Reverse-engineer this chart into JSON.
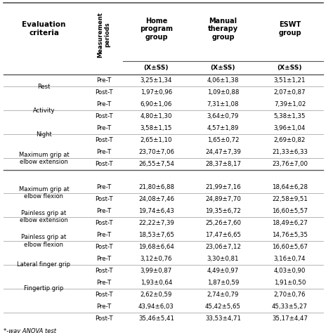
{
  "col_headers_line1": [
    "Evaluation",
    "",
    "Home",
    "Manual",
    "ESWT"
  ],
  "col_headers_line2": [
    "criteria",
    "",
    "program",
    "therapy",
    "group"
  ],
  "col_headers_line3": [
    "",
    "",
    "group",
    "group",
    ""
  ],
  "measurement_label": "Measurement\nperiods",
  "subheader": [
    "",
    "",
    "(X±SS)",
    "(X±SS)",
    "(X±SS)"
  ],
  "rows": [
    [
      "Rest",
      "Pre-T",
      "3,25±1,34",
      "4,06±1,38",
      "3,51±1,21"
    ],
    [
      "",
      "Post-T",
      "1,97±0,96",
      "1,09±0,88",
      "2,07±0,87"
    ],
    [
      "Activity",
      "Pre-T",
      "6,90±1,06",
      "7,31±1,08",
      "7,39±1,02"
    ],
    [
      "",
      "Post-T",
      "4,80±1,30",
      "3,64±0,79",
      "5,38±1,35"
    ],
    [
      "Night",
      "Pre-T",
      "3,58±1,15",
      "4,57±1,89",
      "3,96±1,04"
    ],
    [
      "",
      "Post-T",
      "2,65±1,10",
      "1,65±0,72",
      "2,69±0,82"
    ],
    [
      "Maximum grip at\nelbow extension",
      "Pre-T",
      "23,70±7,06",
      "24,47±7,39",
      "21,33±6,33"
    ],
    [
      "",
      "Post-T",
      "26,55±7,54",
      "28,37±8,17",
      "23,76±7,00"
    ],
    [
      "",
      "",
      "",
      "",
      ""
    ],
    [
      "Maximum grip at\nelbow flexion",
      "Pre-T",
      "21,80±6,88",
      "21,99±7,16",
      "18,64±6,28"
    ],
    [
      "",
      "Post-T",
      "24,08±7,46",
      "24,89±7,70",
      "22,58±9,51"
    ],
    [
      "Painless grip at\nelbow extension",
      "Pre-T",
      "19,74±6,43",
      "19,35±6,72",
      "16,60±5,57"
    ],
    [
      "",
      "Post-T",
      "22,22±7,39",
      "25,26±7,60",
      "18,49±6,27"
    ],
    [
      "Painless grip at\nelbow flexion",
      "Pre-T",
      "18,53±7,65",
      "17,47±6,65",
      "14,76±5,35"
    ],
    [
      "",
      "Post-T",
      "19,68±6,64",
      "23,06±7,12",
      "16,60±5,67"
    ],
    [
      "Lateral finger grip",
      "Pre-T",
      "3,12±0,76",
      "3,30±0,81",
      "3,16±0,74"
    ],
    [
      "",
      "Post-T",
      "3,99±0,87",
      "4,49±0,97",
      "4,03±0,90"
    ],
    [
      "Fingertip grip",
      "Pre-T",
      "1,93±0,64",
      "1,87±0,59",
      "1,91±0,50"
    ],
    [
      "",
      "Post-T",
      "2,62±0,59",
      "2,74±0,79",
      "2,70±0,76"
    ],
    [
      "",
      "Pre-T",
      "43,94±6,03",
      "45,42±5,65",
      "45,33±5,27"
    ],
    [
      "",
      "Post-T",
      "35,46±5,41",
      "33,53±4,71",
      "35,17±4,47"
    ]
  ],
  "footer": "*-way ANOVA test",
  "bg_color": "#ffffff",
  "text_color": "#000000",
  "line_color": "#aaaaaa",
  "thick_line_color": "#555555"
}
